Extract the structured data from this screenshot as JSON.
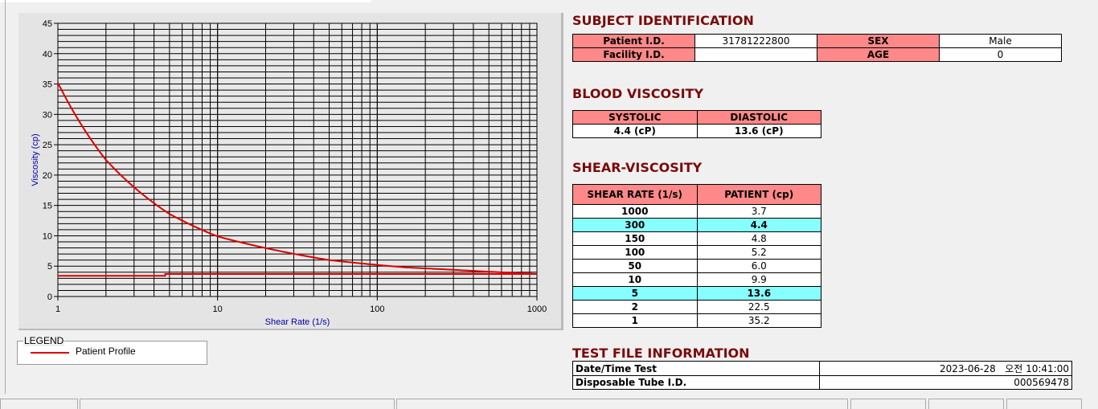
{
  "subject": {
    "title": "SUBJECT IDENTIFICATION",
    "patient_id_label": "Patient I.D.",
    "patient_id": "31781222800",
    "sex_label": "SEX",
    "sex": "Male",
    "facility_label": "Facility I.D.",
    "facility": "",
    "age_label": "AGE",
    "age": "0"
  },
  "blood": {
    "title": "BLOOD VISCOSITY",
    "systolic_label": "SYSTOLIC",
    "diastolic_label": "DIASTOLIC",
    "systolic": "4.4 (cP)",
    "diastolic": "13.6 (cP)"
  },
  "shear": {
    "title": "SHEAR-VISCOSITY",
    "col1": "SHEAR RATE (1/s)",
    "col2": "PATIENT (cp)",
    "rows": [
      {
        "rate": "1000",
        "val": "3.7"
      },
      {
        "rate": "300",
        "val": "4.4",
        "hl": true
      },
      {
        "rate": "150",
        "val": "4.8"
      },
      {
        "rate": "100",
        "val": "5.2"
      },
      {
        "rate": "50",
        "val": "6.0"
      },
      {
        "rate": "10",
        "val": "9.9"
      },
      {
        "rate": "5",
        "val": "13.6",
        "hl": true
      },
      {
        "rate": "2",
        "val": "22.5"
      },
      {
        "rate": "1",
        "val": "35.2"
      }
    ]
  },
  "testfile": {
    "title": "TEST FILE INFORMATION",
    "date_label": "Date/Time Test",
    "date": "2023-06-28   오전 10:41:00",
    "tube_label": "Disposable Tube I.D.",
    "tube": "000569478"
  },
  "legend": {
    "title": "LEGEND",
    "entry": "Patient Profile"
  },
  "chart_data": {
    "type": "line",
    "xlabel": "Shear Rate (1/s)",
    "ylabel": "Viscosity (cp)",
    "xscale": "log",
    "xlim": [
      1,
      1000
    ],
    "ylim": [
      0,
      45
    ],
    "grid": true,
    "xticks": [
      "1",
      "10",
      "100",
      "1000"
    ],
    "yticks": [
      "0",
      "5",
      "10",
      "15",
      "20",
      "25",
      "30",
      "35",
      "40",
      "45"
    ],
    "series": [
      {
        "name": "Patient Profile",
        "color": "#dd0000",
        "x": [
          1,
          2,
          5,
          10,
          50,
          100,
          150,
          300,
          1000
        ],
        "y": [
          35.2,
          22.5,
          13.6,
          9.9,
          6.0,
          5.2,
          4.8,
          4.4,
          3.7
        ]
      },
      {
        "color": "#dd0000",
        "x": [
          1,
          4.7,
          4.7,
          1000
        ],
        "y": [
          3.4,
          3.4,
          3.7,
          3.7
        ]
      }
    ]
  }
}
